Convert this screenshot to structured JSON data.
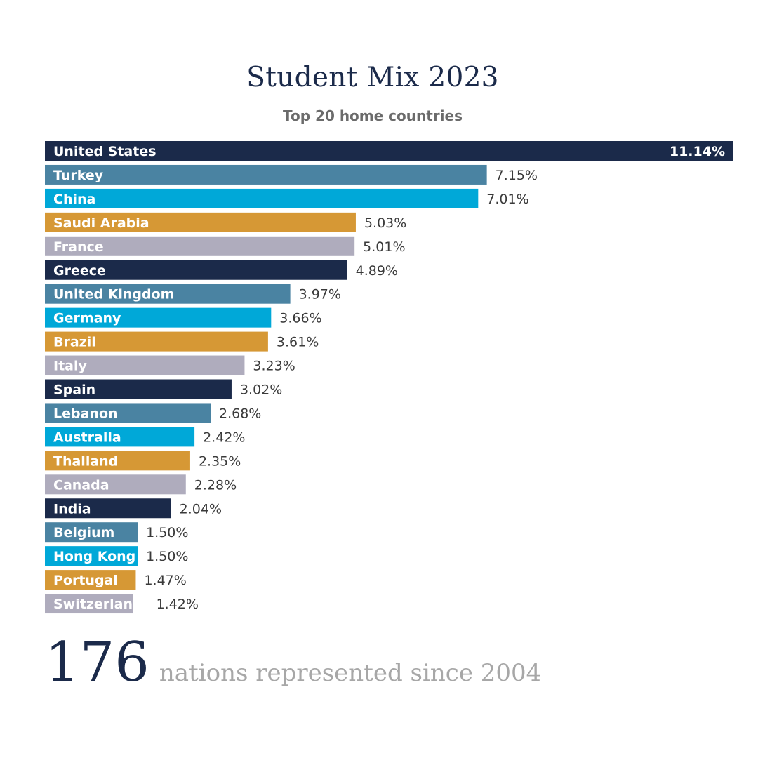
{
  "header": {
    "title": "Student Mix 2023",
    "subtitle": "Top 20 home countries"
  },
  "footer": {
    "number": "176",
    "text": "nations represented since 2004"
  },
  "colors": {
    "navy": "#1b2a4a",
    "steel_blue": "#4a83a2",
    "cyan": "#00a8d8",
    "gold": "#d69835",
    "grey": "#afacbd"
  },
  "chart_data": {
    "type": "bar",
    "orientation": "horizontal",
    "title": "Student Mix 2023",
    "subtitle": "Top 20 home countries",
    "xlabel": "",
    "ylabel": "",
    "unit": "%",
    "xlim": [
      0,
      11.14
    ],
    "grid": false,
    "categories": [
      "United States",
      "Turkey",
      "China",
      "Saudi Arabia",
      "France",
      "Greece",
      "United Kingdom",
      "Germany",
      "Brazil",
      "Italy",
      "Spain",
      "Lebanon",
      "Australia",
      "Thailand",
      "Canada",
      "India",
      "Belgium",
      "Hong Kong",
      "Portugal",
      "Switzerland"
    ],
    "values": [
      11.14,
      7.15,
      7.01,
      5.03,
      5.01,
      4.89,
      3.97,
      3.66,
      3.61,
      3.23,
      3.02,
      2.68,
      2.42,
      2.35,
      2.28,
      2.04,
      1.5,
      1.5,
      1.47,
      1.42
    ],
    "value_labels": [
      "11.14%",
      "7.15%",
      "7.01%",
      "5.03%",
      "5.01%",
      "4.89%",
      "3.97%",
      "3.66%",
      "3.61%",
      "3.23%",
      "3.02%",
      "2.68%",
      "2.42%",
      "2.35%",
      "2.28%",
      "2.04%",
      "1.50%",
      "1.50%",
      "1.47%",
      "1.42%"
    ],
    "bar_colors": [
      "#1b2a4a",
      "#4a83a2",
      "#00a8d8",
      "#d69835",
      "#afacbd",
      "#1b2a4a",
      "#4a83a2",
      "#00a8d8",
      "#d69835",
      "#afacbd",
      "#1b2a4a",
      "#4a83a2",
      "#00a8d8",
      "#d69835",
      "#afacbd",
      "#1b2a4a",
      "#4a83a2",
      "#00a8d8",
      "#d69835",
      "#afacbd"
    ]
  }
}
